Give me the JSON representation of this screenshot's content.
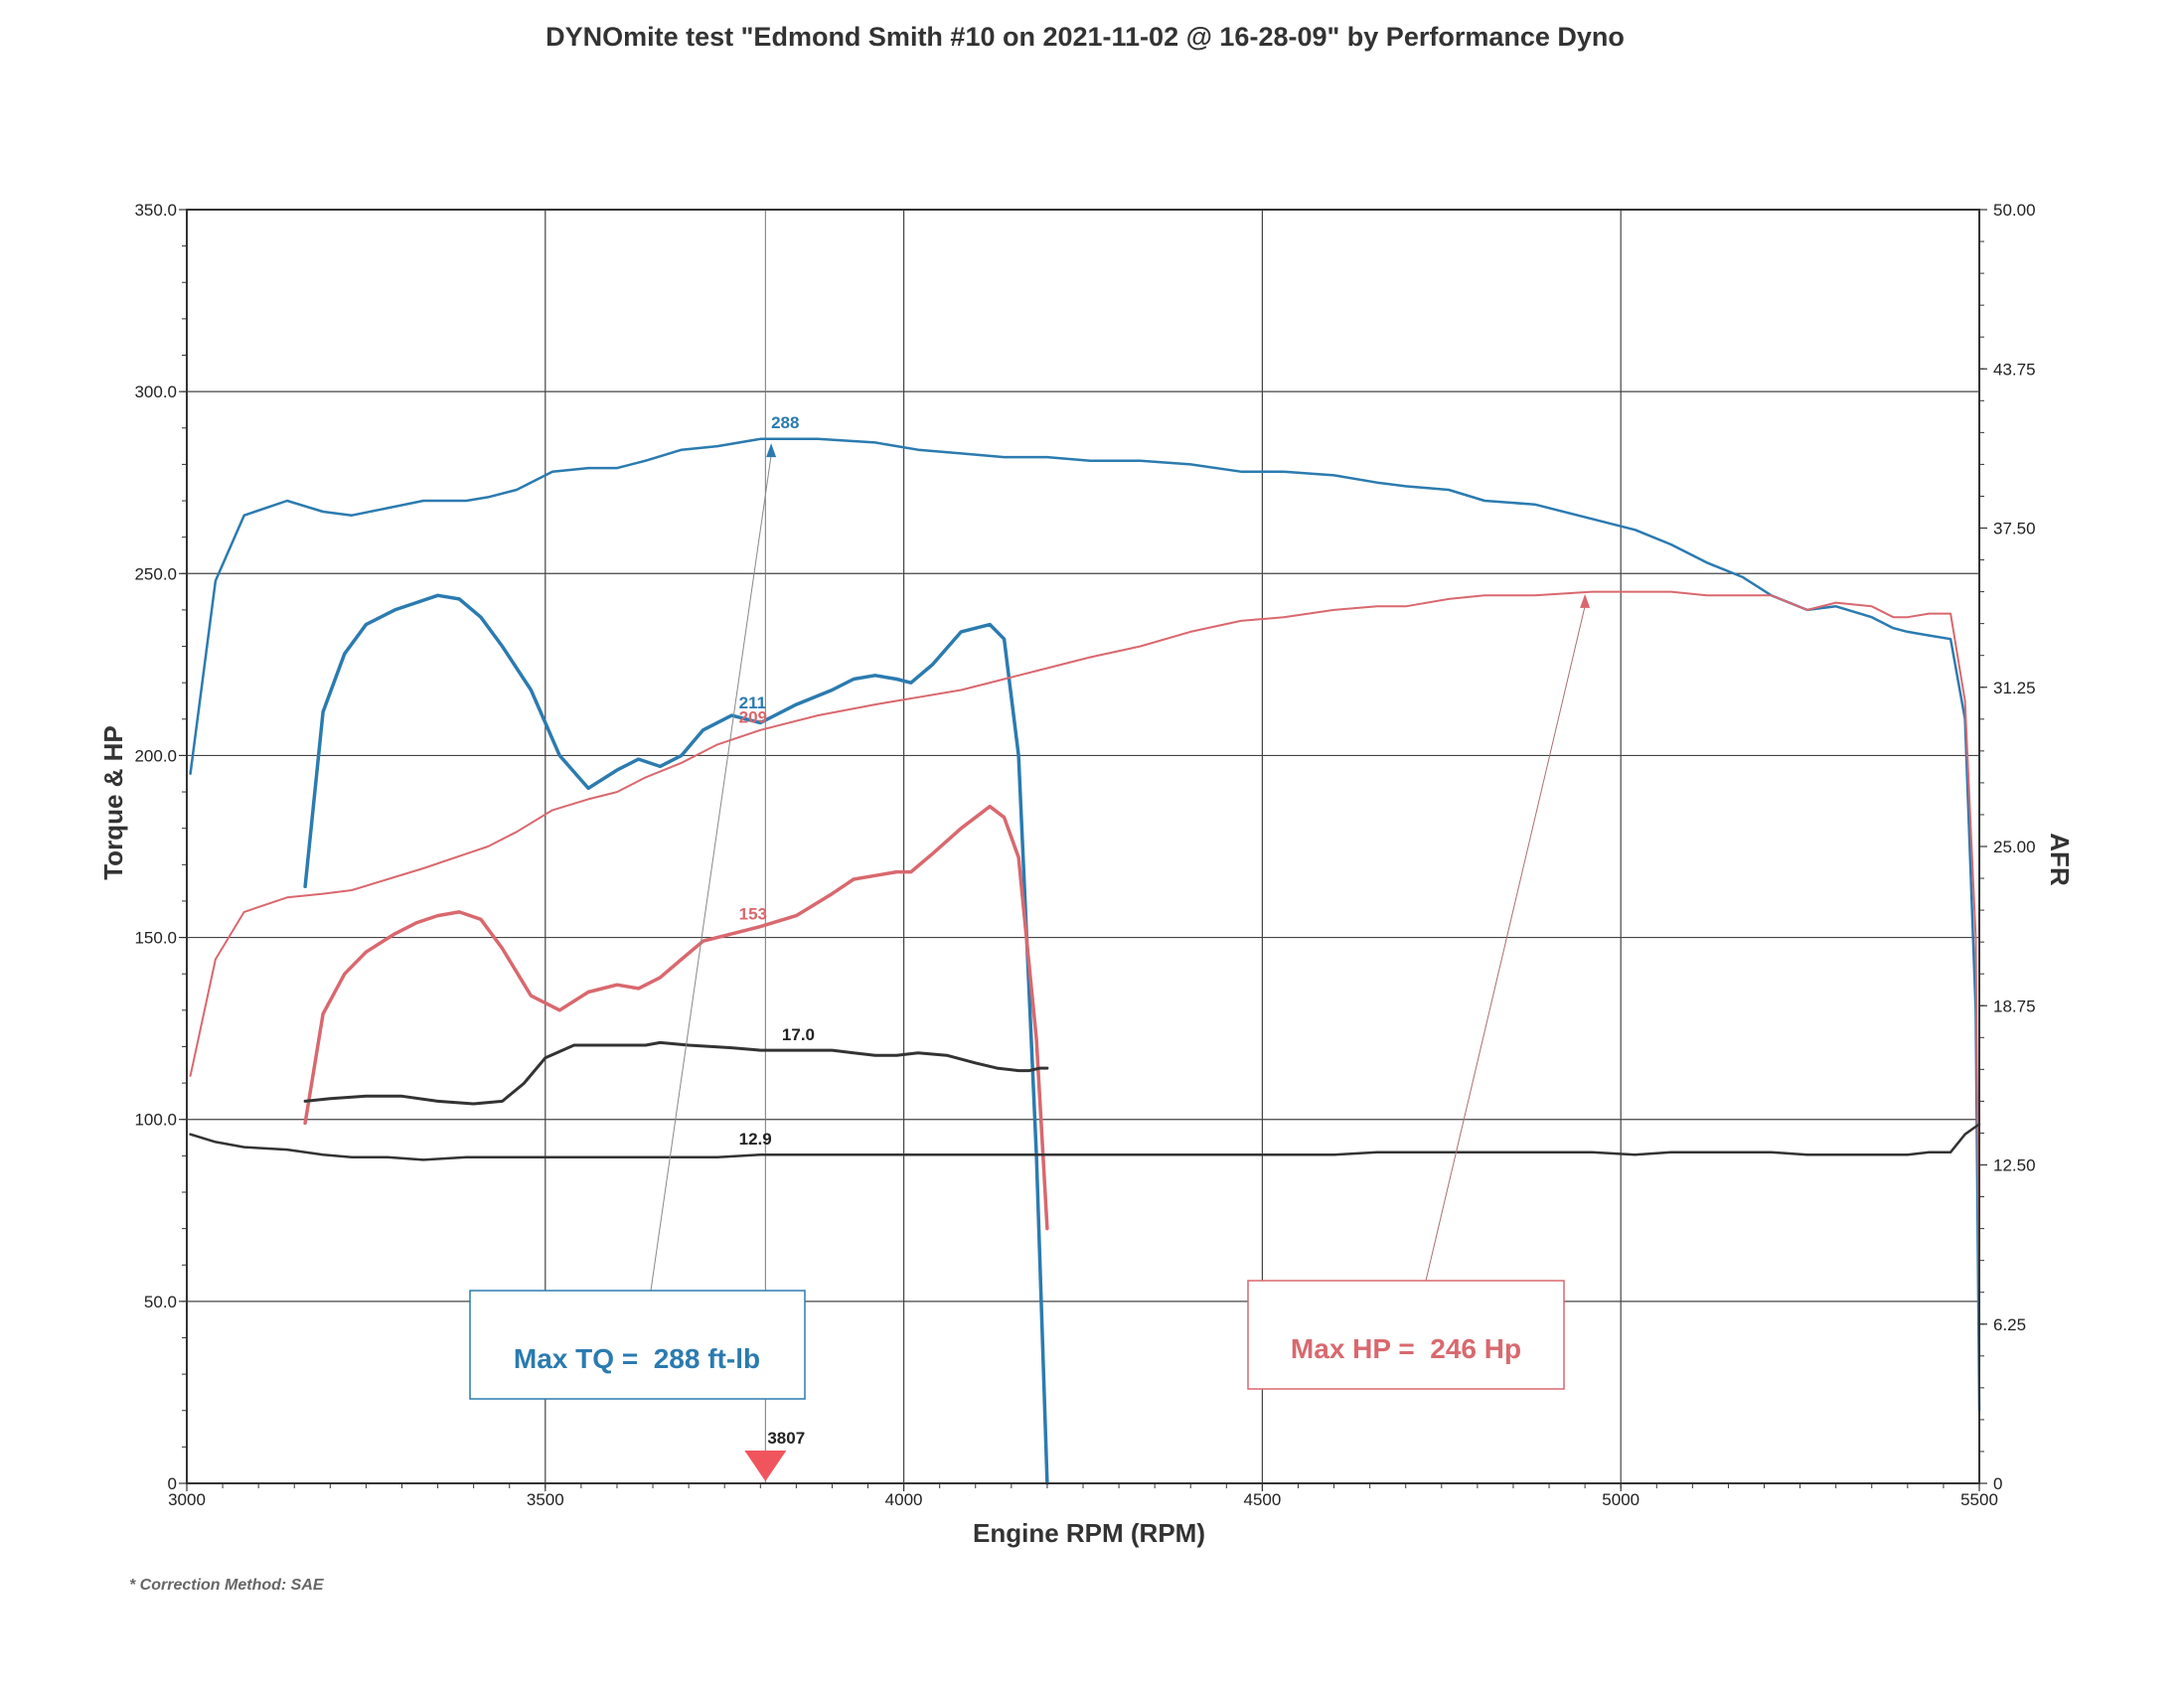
{
  "chart_data": {
    "type": "line",
    "title": "DYNOmite test \"Edmond Smith #10 on 2021-11-02 @ 16-28-09\" by Performance Dyno",
    "xlabel": "Engine RPM (RPM)",
    "ylabel": "Torque & HP",
    "y2label": "AFR",
    "xlim": [
      3000,
      5500
    ],
    "ylim": [
      0,
      350
    ],
    "y2lim": [
      0,
      50
    ],
    "x_ticks": [
      "3000",
      "3500",
      "4000",
      "4500",
      "5000",
      "5500"
    ],
    "y_ticks": [
      "0",
      "50.0",
      "100.0",
      "150.0",
      "200.0",
      "250.0",
      "300.0",
      "350.0"
    ],
    "y2_ticks": [
      "0",
      "6.25",
      "12.50",
      "18.75",
      "25.00",
      "31.25",
      "37.50",
      "43.75",
      "50.00"
    ],
    "grid": true,
    "colors": {
      "torque": "#2b7bb0",
      "hp": "#d9686e",
      "afr": "#333333"
    },
    "series": [
      {
        "kind": "torque",
        "axis": "left",
        "width": 2.5,
        "x": [
          3005,
          3040,
          3080,
          3140,
          3190,
          3230,
          3280,
          3330,
          3390,
          3420,
          3460,
          3510,
          3560,
          3600,
          3640,
          3690,
          3740,
          3800,
          3880,
          3960,
          4020,
          4080,
          4140,
          4200,
          4260,
          4330,
          4400,
          4470,
          4530,
          4600,
          4660,
          4700,
          4760,
          4810,
          4880,
          4960,
          5020,
          5070,
          5120,
          5170,
          5210,
          5260,
          5300,
          5350,
          5380,
          5400,
          5430,
          5460,
          5480,
          5495,
          5500
        ],
        "y": [
          195,
          248,
          266,
          270,
          267,
          266,
          268,
          270,
          270,
          271,
          273,
          278,
          279,
          279,
          281,
          284,
          285,
          287,
          287,
          286,
          284,
          283,
          282,
          282,
          281,
          281,
          280,
          278,
          278,
          277,
          275,
          274,
          273,
          270,
          269,
          265,
          262,
          258,
          253,
          249,
          244,
          240,
          241,
          238,
          235,
          234,
          233,
          232,
          210,
          130,
          20
        ]
      },
      {
        "kind": "torque",
        "axis": "left",
        "width": 3.5,
        "x": [
          3165,
          3190,
          3220,
          3250,
          3290,
          3320,
          3350,
          3380,
          3410,
          3440,
          3480,
          3520,
          3560,
          3600,
          3630,
          3660,
          3690,
          3720,
          3760,
          3800,
          3850,
          3900,
          3930,
          3960,
          3990,
          4010,
          4040,
          4080,
          4120,
          4140,
          4160,
          4185,
          4200
        ],
        "y": [
          164,
          212,
          228,
          236,
          240,
          242,
          244,
          243,
          238,
          230,
          218,
          200,
          191,
          196,
          199,
          197,
          200,
          207,
          211,
          209,
          214,
          218,
          221,
          222,
          221,
          220,
          225,
          234,
          236,
          232,
          200,
          90,
          0
        ]
      },
      {
        "kind": "hp",
        "axis": "left",
        "width": 2,
        "x": [
          3005,
          3040,
          3080,
          3140,
          3190,
          3230,
          3280,
          3330,
          3390,
          3420,
          3460,
          3510,
          3560,
          3600,
          3640,
          3690,
          3740,
          3800,
          3880,
          3960,
          4020,
          4080,
          4140,
          4200,
          4260,
          4330,
          4400,
          4470,
          4530,
          4600,
          4660,
          4700,
          4760,
          4810,
          4880,
          4960,
          5020,
          5070,
          5120,
          5170,
          5210,
          5260,
          5300,
          5350,
          5380,
          5400,
          5430,
          5460,
          5480,
          5495,
          5500
        ],
        "y": [
          112,
          144,
          157,
          161,
          162,
          163,
          166,
          169,
          173,
          175,
          179,
          185,
          188,
          190,
          194,
          198,
          203,
          207,
          211,
          214,
          216,
          218,
          221,
          224,
          227,
          230,
          234,
          237,
          238,
          240,
          241,
          241,
          243,
          244,
          244,
          245,
          245,
          245,
          244,
          244,
          244,
          240,
          242,
          241,
          238,
          238,
          239,
          239,
          215,
          150,
          50
        ]
      },
      {
        "kind": "hp",
        "axis": "left",
        "width": 3.5,
        "x": [
          3165,
          3190,
          3220,
          3250,
          3290,
          3320,
          3350,
          3380,
          3410,
          3440,
          3480,
          3520,
          3560,
          3600,
          3630,
          3660,
          3690,
          3720,
          3760,
          3800,
          3850,
          3900,
          3930,
          3960,
          3990,
          4010,
          4040,
          4080,
          4120,
          4140,
          4160,
          4185,
          4200
        ],
        "y": [
          99,
          129,
          140,
          146,
          151,
          154,
          156,
          157,
          155,
          147,
          134,
          130,
          135,
          137,
          136,
          139,
          144,
          149,
          151,
          153,
          156,
          162,
          166,
          167,
          168,
          168,
          173,
          180,
          186,
          183,
          172,
          122,
          70
        ]
      },
      {
        "kind": "afr",
        "axis": "right",
        "width": 2.5,
        "x": [
          3005,
          3040,
          3080,
          3140,
          3190,
          3230,
          3280,
          3330,
          3390,
          3420,
          3460,
          3510,
          3560,
          3600,
          3640,
          3690,
          3740,
          3800,
          3880,
          3960,
          4020,
          4080,
          4140,
          4200,
          4260,
          4330,
          4400,
          4470,
          4530,
          4600,
          4660,
          4700,
          4760,
          4810,
          4880,
          4960,
          5020,
          5070,
          5120,
          5170,
          5210,
          5260,
          5300,
          5350,
          5380,
          5400,
          5430,
          5460,
          5480,
          5495,
          5500
        ],
        "y": [
          13.7,
          13.4,
          13.2,
          13.1,
          12.9,
          12.8,
          12.8,
          12.7,
          12.8,
          12.8,
          12.8,
          12.8,
          12.8,
          12.8,
          12.8,
          12.8,
          12.8,
          12.9,
          12.9,
          12.9,
          12.9,
          12.9,
          12.9,
          12.9,
          12.9,
          12.9,
          12.9,
          12.9,
          12.9,
          12.9,
          13.0,
          13.0,
          13.0,
          13.0,
          13.0,
          13.0,
          12.9,
          13.0,
          13.0,
          13.0,
          13.0,
          12.9,
          12.9,
          12.9,
          12.9,
          12.9,
          13.0,
          13.0,
          13.7,
          14.0,
          14.1
        ]
      },
      {
        "kind": "afr",
        "axis": "right",
        "width": 3,
        "x": [
          3165,
          3200,
          3250,
          3300,
          3350,
          3400,
          3440,
          3470,
          3500,
          3540,
          3600,
          3640,
          3660,
          3700,
          3760,
          3800,
          3850,
          3900,
          3930,
          3960,
          3990,
          4020,
          4060,
          4100,
          4130,
          4160,
          4175,
          4190,
          4200
        ],
        "y": [
          15.0,
          15.1,
          15.2,
          15.2,
          15.0,
          14.9,
          15.0,
          15.7,
          16.7,
          17.2,
          17.2,
          17.2,
          17.3,
          17.2,
          17.1,
          17.0,
          17.0,
          17.0,
          16.9,
          16.8,
          16.8,
          16.9,
          16.8,
          16.5,
          16.3,
          16.2,
          16.2,
          16.3,
          16.3
        ]
      }
    ],
    "point_labels": [
      {
        "text": "288",
        "x": 3815,
        "y": 290,
        "kind": "torque"
      },
      {
        "text": "211",
        "x": 3770,
        "y": 213,
        "kind": "torque"
      },
      {
        "text": "209",
        "x": 3770,
        "y": 209,
        "kind": "hp"
      },
      {
        "text": "153",
        "x": 3770,
        "y": 155,
        "kind": "hp"
      },
      {
        "text": "17.0",
        "x": 3830,
        "y": 17.4,
        "kind": "afr",
        "axis": "right"
      },
      {
        "text": "12.9",
        "x": 3770,
        "y": 13.3,
        "kind": "afr",
        "axis": "right"
      }
    ],
    "cursor": {
      "x": 3807,
      "label": "3807"
    },
    "annotations": [
      {
        "text": "Max TQ =  288 ft-lb",
        "kind": "torque",
        "target": {
          "x": 3815,
          "y": 288
        }
      },
      {
        "text": "Max HP =  246 Hp",
        "kind": "hp",
        "target": {
          "x": 4950,
          "y": 246
        }
      }
    ],
    "footnote": "* Correction Method: SAE"
  }
}
